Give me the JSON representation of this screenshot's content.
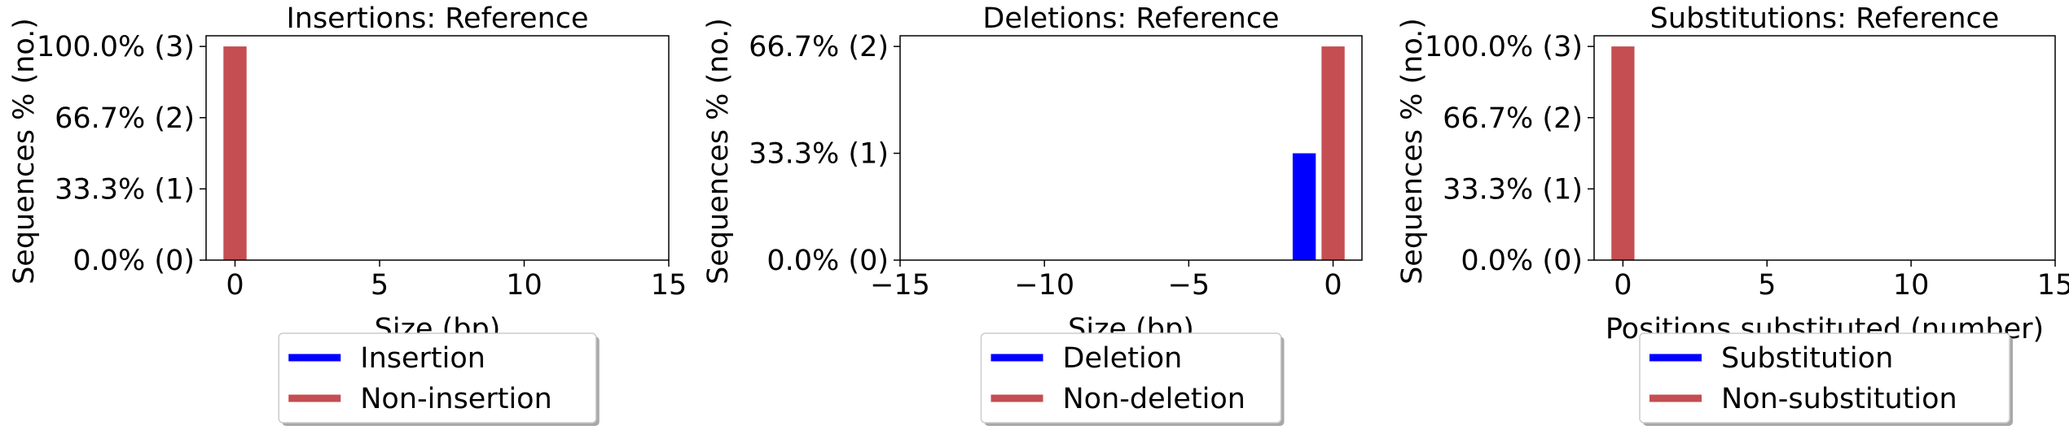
{
  "chart_data": [
    {
      "type": "bar",
      "title": "Insertions: Reference",
      "xlabel": "Size (bp)",
      "ylabel": "Sequences % (no.)",
      "xlim": [
        -1,
        15
      ],
      "ylim": [
        0,
        3.15
      ],
      "xticks": [
        0,
        5,
        10,
        15
      ],
      "yticks": [
        0,
        1,
        2,
        3
      ],
      "ytick_labels": [
        "0.0% (0)",
        "33.3% (1)",
        "66.7% (2)",
        "100.0% (3)"
      ],
      "grid": false,
      "legend_position": "below",
      "series": [
        {
          "name": "Insertion",
          "color": "#0000ff",
          "bars": []
        },
        {
          "name": "Non-insertion",
          "color": "#c44e52",
          "bars": [
            {
              "x": 0,
              "value": 3
            }
          ]
        }
      ]
    },
    {
      "type": "bar",
      "title": "Deletions: Reference",
      "xlabel": "Size (bp)",
      "ylabel": "Sequences % (no.)",
      "xlim": [
        -15,
        1
      ],
      "ylim": [
        0,
        2.1
      ],
      "xticks": [
        -15,
        -10,
        -5,
        0
      ],
      "xtick_labels": [
        "−15",
        "−10",
        "−5",
        "0"
      ],
      "yticks": [
        0,
        1,
        2
      ],
      "ytick_labels": [
        "0.0% (0)",
        "33.3% (1)",
        "66.7% (2)"
      ],
      "grid": false,
      "legend_position": "below",
      "series": [
        {
          "name": "Deletion",
          "color": "#0000ff",
          "bars": [
            {
              "x": -1,
              "value": 1
            }
          ]
        },
        {
          "name": "Non-deletion",
          "color": "#c44e52",
          "bars": [
            {
              "x": 0,
              "value": 2
            }
          ]
        }
      ]
    },
    {
      "type": "bar",
      "title": "Substitutions: Reference",
      "xlabel": "Positions substituted (number)",
      "ylabel": "Sequences % (no.)",
      "xlim": [
        -1,
        15
      ],
      "ylim": [
        0,
        3.15
      ],
      "xticks": [
        0,
        5,
        10,
        15
      ],
      "yticks": [
        0,
        1,
        2,
        3
      ],
      "ytick_labels": [
        "0.0% (0)",
        "33.3% (1)",
        "66.7% (2)",
        "100.0% (3)"
      ],
      "grid": false,
      "legend_position": "below",
      "series": [
        {
          "name": "Substitution",
          "color": "#0000ff",
          "bars": []
        },
        {
          "name": "Non-substitution",
          "color": "#c44e52",
          "bars": [
            {
              "x": 0,
              "value": 3
            }
          ]
        }
      ]
    }
  ]
}
